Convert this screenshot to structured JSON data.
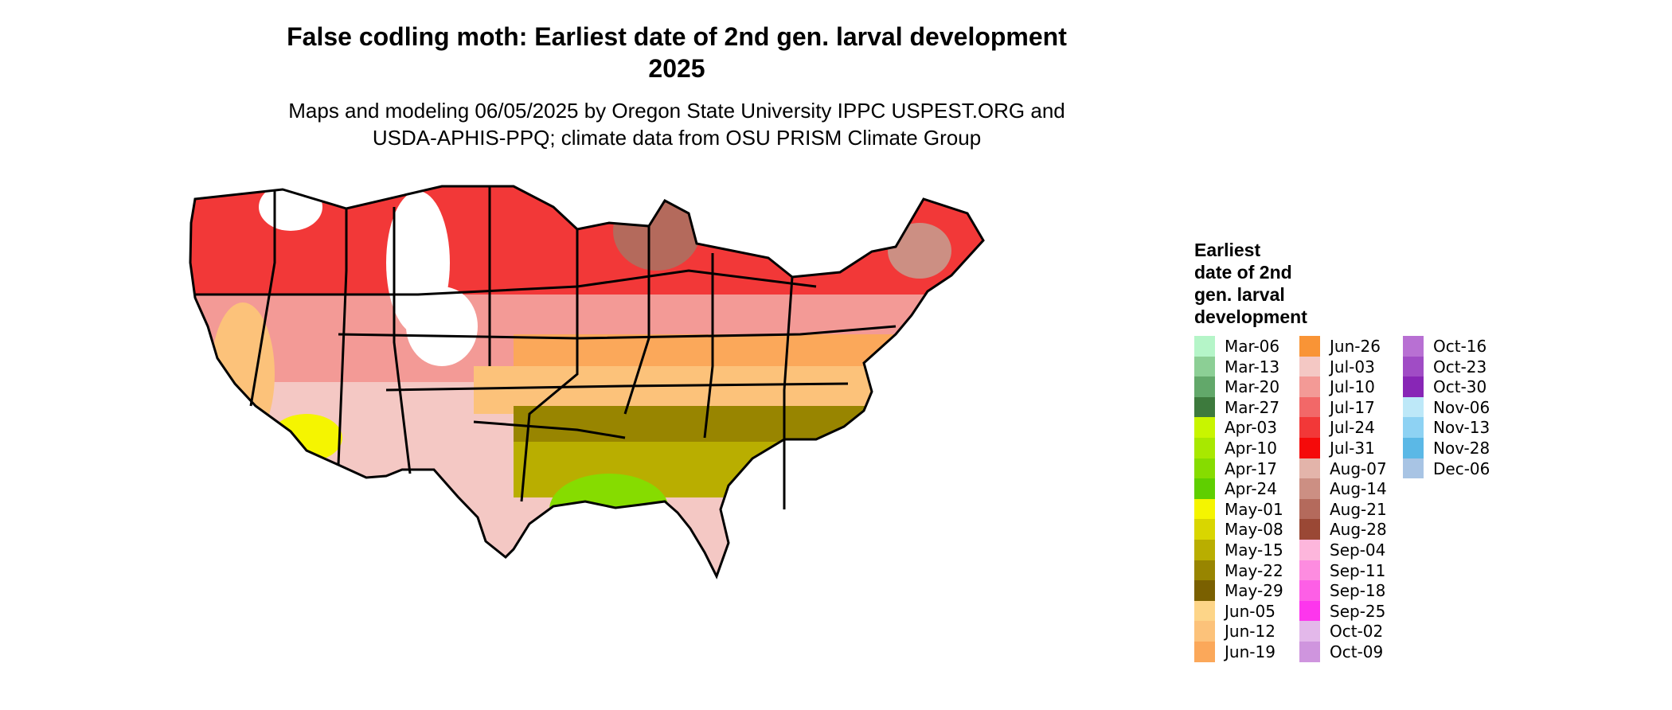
{
  "title_line1": "False codling moth: Earliest date of 2nd gen. larval development",
  "title_line2": "2025",
  "subtitle_line1": "Maps and modeling 06/05/2025 by Oregon State University IPPC USPEST.ORG and",
  "subtitle_line2": "USDA-APHIS-PPQ; climate data from OSU PRISM Climate Group",
  "legend": {
    "title_lines": [
      "Earliest",
      "date of 2nd",
      "gen. larval",
      "development"
    ],
    "items": [
      {
        "label": "Mar-06",
        "color": "#b5f5c8"
      },
      {
        "label": "Mar-13",
        "color": "#8ccf95"
      },
      {
        "label": "Mar-20",
        "color": "#62a86a"
      },
      {
        "label": "Mar-27",
        "color": "#3d7a3d"
      },
      {
        "label": "Apr-03",
        "color": "#c8f500"
      },
      {
        "label": "Apr-10",
        "color": "#a8e800"
      },
      {
        "label": "Apr-17",
        "color": "#86dc00"
      },
      {
        "label": "Apr-24",
        "color": "#5fcf00"
      },
      {
        "label": "May-01",
        "color": "#f5f500"
      },
      {
        "label": "May-08",
        "color": "#d9d600"
      },
      {
        "label": "May-15",
        "color": "#b9ae00"
      },
      {
        "label": "May-22",
        "color": "#988500"
      },
      {
        "label": "May-29",
        "color": "#7a6000"
      },
      {
        "label": "Jun-05",
        "color": "#fdd588"
      },
      {
        "label": "Jun-12",
        "color": "#fcc27a"
      },
      {
        "label": "Jun-19",
        "color": "#fba85a"
      },
      {
        "label": "Jun-26",
        "color": "#f99436"
      },
      {
        "label": "Jul-03",
        "color": "#f4c8c4"
      },
      {
        "label": "Jul-10",
        "color": "#f39a96"
      },
      {
        "label": "Jul-17",
        "color": "#f26868"
      },
      {
        "label": "Jul-24",
        "color": "#f23838"
      },
      {
        "label": "Jul-31",
        "color": "#f50a0a"
      },
      {
        "label": "Aug-07",
        "color": "#e3b4aa"
      },
      {
        "label": "Aug-14",
        "color": "#cc8f83"
      },
      {
        "label": "Aug-21",
        "color": "#b46a5c"
      },
      {
        "label": "Aug-28",
        "color": "#9a4835"
      },
      {
        "label": "Sep-04",
        "color": "#fdb6dc"
      },
      {
        "label": "Sep-11",
        "color": "#fd8ce0"
      },
      {
        "label": "Sep-18",
        "color": "#fd5fe6"
      },
      {
        "label": "Sep-25",
        "color": "#fd36ed"
      },
      {
        "label": "Oct-02",
        "color": "#e3b8ea"
      },
      {
        "label": "Oct-09",
        "color": "#cf95de"
      },
      {
        "label": "Oct-16",
        "color": "#b870d3"
      },
      {
        "label": "Oct-23",
        "color": "#a04cc5"
      },
      {
        "label": "Oct-30",
        "color": "#8826b6"
      },
      {
        "label": "Nov-06",
        "color": "#bde8f8"
      },
      {
        "label": "Nov-13",
        "color": "#8ed2f3"
      },
      {
        "label": "Nov-28",
        "color": "#5bb8e6"
      },
      {
        "label": "Dec-06",
        "color": "#a8c4e4"
      }
    ],
    "column_sizes": [
      16,
      16,
      7
    ]
  }
}
